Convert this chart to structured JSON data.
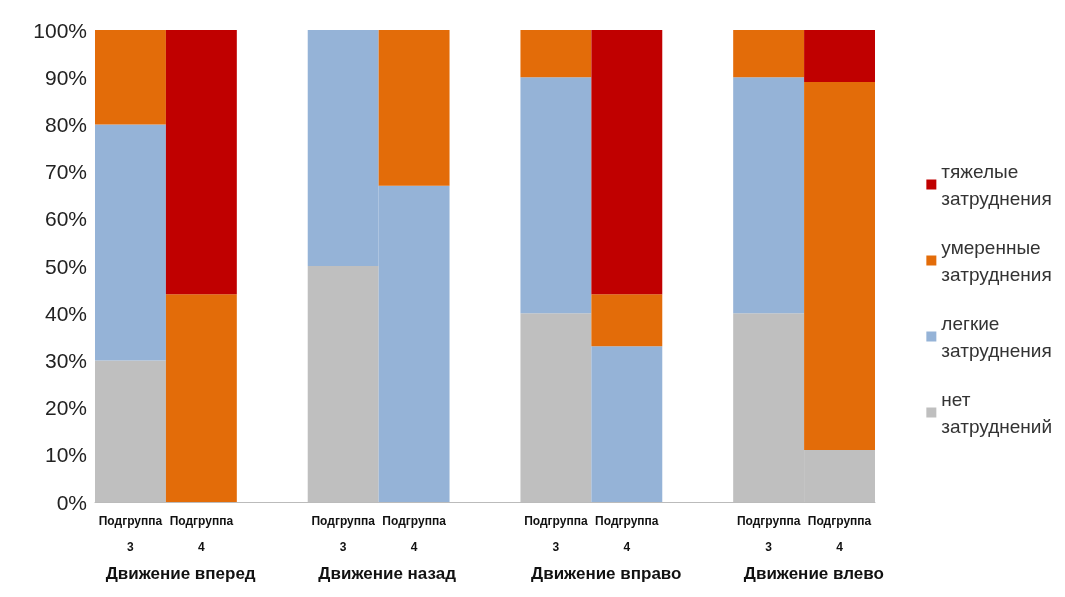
{
  "chart_data": {
    "type": "bar",
    "stacked": true,
    "categories": [
      "Подгруппа 3",
      "Подгруппа 4",
      null,
      "Подгруппа 3",
      "Подгруппа 4",
      null,
      "Подгруппа 3",
      "Подгруппа 4",
      null,
      "Подгруппа 3",
      "Подгруппа 4"
    ],
    "annotations": [
      "Движение вперед",
      "Движение назад",
      "Движение вправо",
      "Движение влево"
    ],
    "series": [
      {
        "name": "нет затруднений",
        "color": "#bfbfbf",
        "values": [
          30,
          0,
          null,
          50,
          0,
          null,
          40,
          0,
          null,
          40,
          11
        ]
      },
      {
        "name": "легкие затруднения",
        "color": "#95b3d7",
        "values": [
          50,
          0,
          null,
          50,
          67,
          null,
          50,
          33,
          null,
          50,
          0
        ]
      },
      {
        "name": "умеренные затруднения",
        "color": "#e36c09",
        "values": [
          20,
          44,
          null,
          0,
          33,
          null,
          10,
          11,
          null,
          10,
          78
        ]
      },
      {
        "name": "тяжелые затруднения",
        "color": "#c00000",
        "values": [
          0,
          56,
          null,
          0,
          0,
          null,
          0,
          56,
          null,
          0,
          11
        ]
      }
    ],
    "ylim": [
      0,
      100
    ],
    "yticks": [
      {
        "value": 0,
        "label": "0%"
      },
      {
        "value": 10,
        "label": "10%"
      },
      {
        "value": 20,
        "label": "20%"
      },
      {
        "value": 30,
        "label": "30%"
      },
      {
        "value": 40,
        "label": "40%"
      },
      {
        "value": 50,
        "label": "50%"
      },
      {
        "value": 60,
        "label": "60%"
      },
      {
        "value": 70,
        "label": "70%"
      },
      {
        "value": 80,
        "label": "80%"
      },
      {
        "value": 90,
        "label": "90%"
      },
      {
        "value": 100,
        "label": "100%"
      }
    ],
    "grid": false,
    "legend": "right"
  }
}
